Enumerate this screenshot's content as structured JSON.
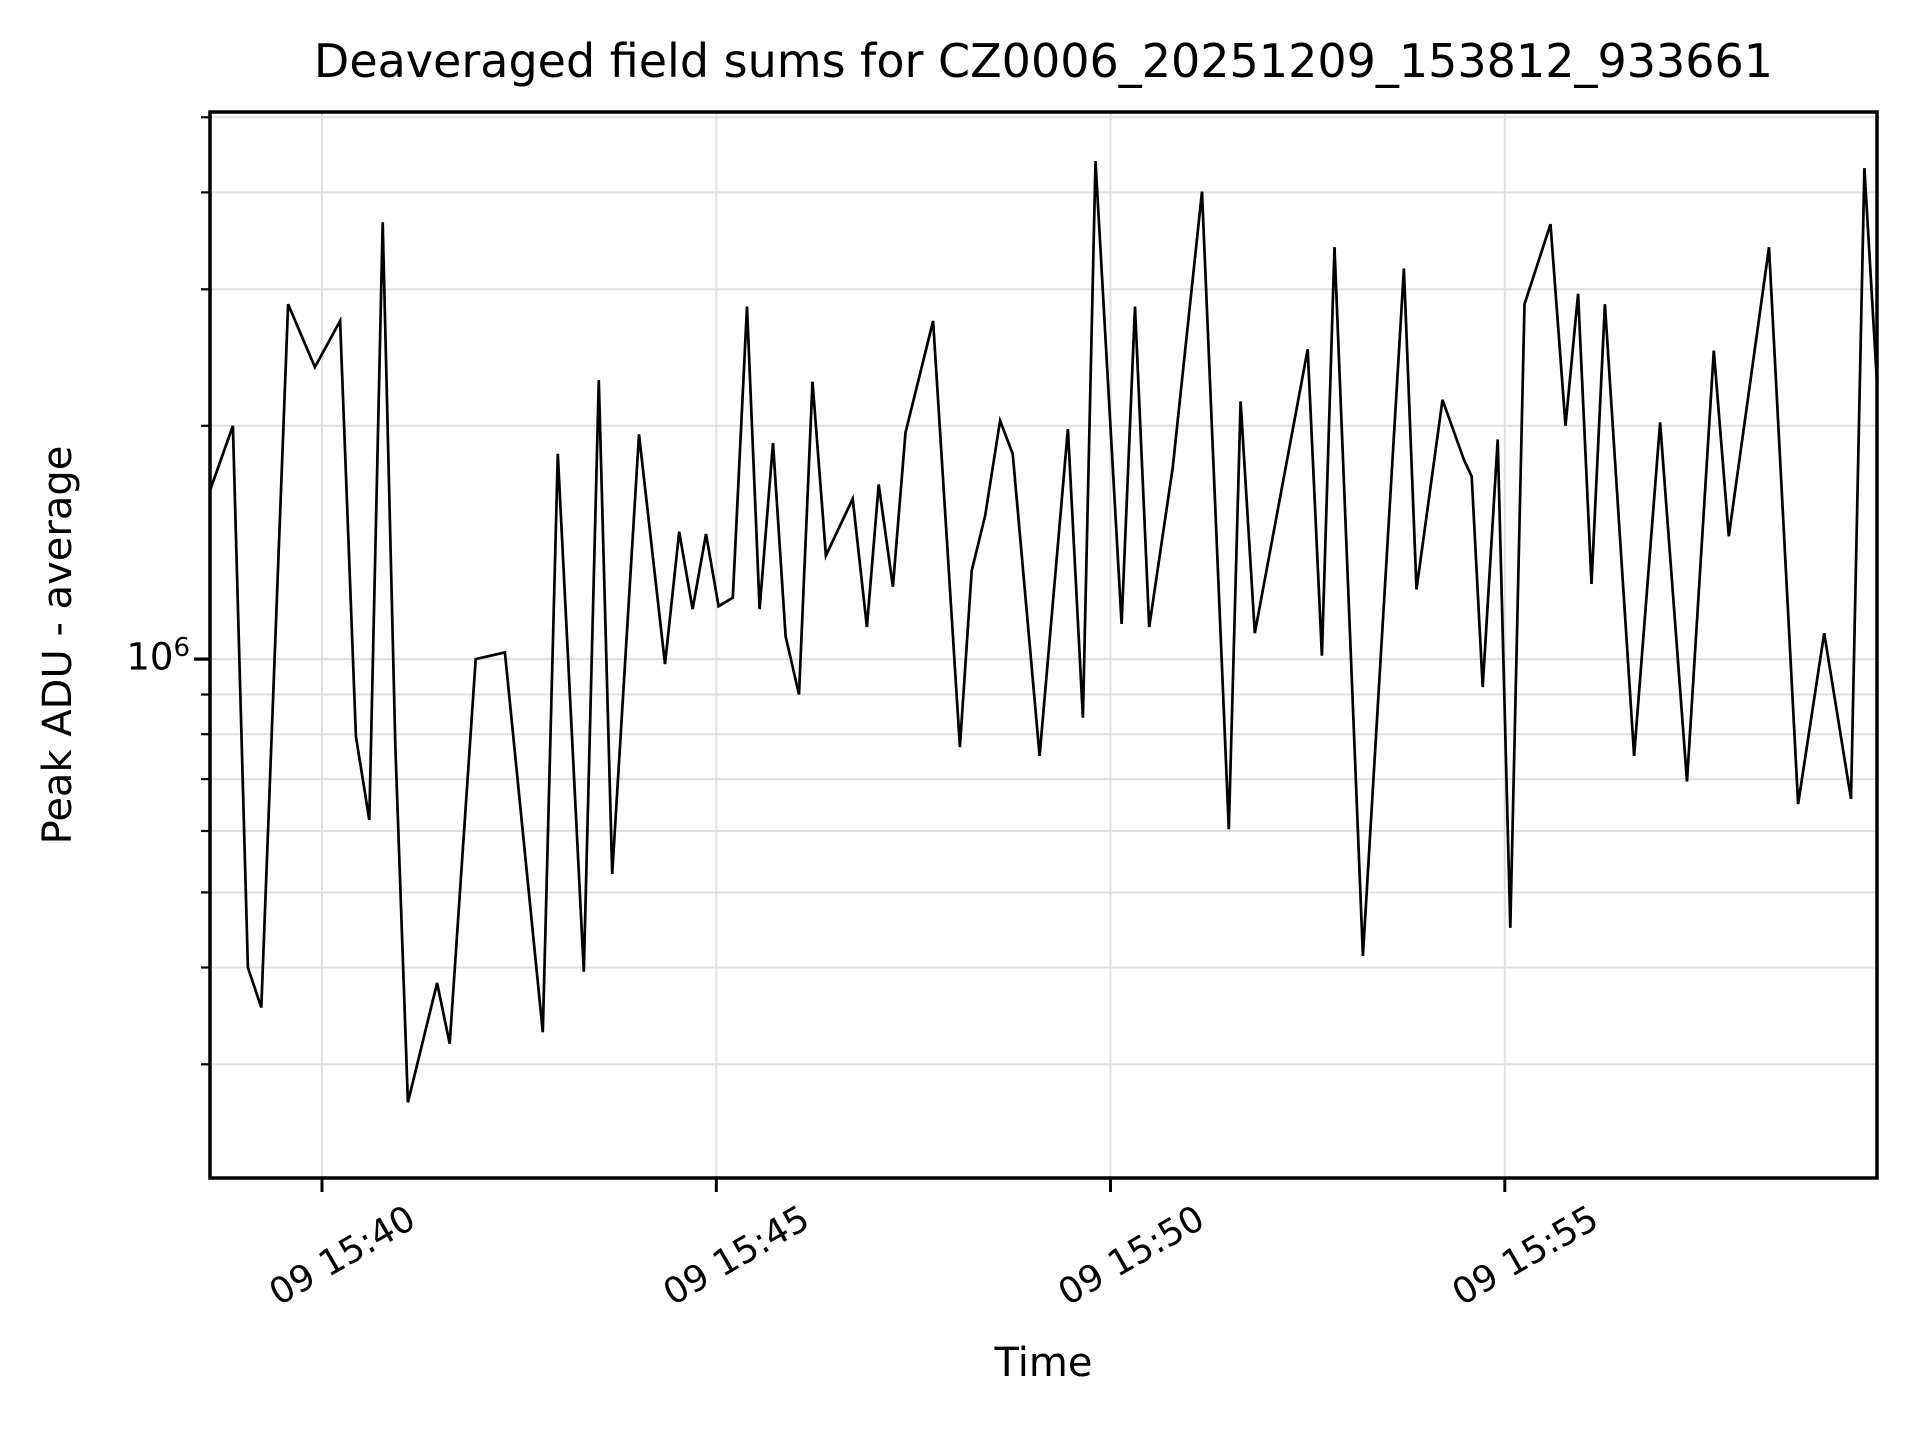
{
  "figure": {
    "title": "Deaveraged field sums for CZ0006_20251209_153812_933661",
    "xlabel": "Time",
    "ylabel": "Peak ADU - average",
    "y_major_tick": {
      "base": "10",
      "exponent": "6"
    }
  },
  "colors": {
    "background": "#ffffff",
    "line": "#000000",
    "grid": "#e0e0e0",
    "spine": "#000000",
    "text": "#000000"
  },
  "chart_data": {
    "type": "line",
    "title": "Deaveraged field sums for CZ0006_20251209_153812_933661",
    "xlabel": "Time",
    "ylabel": "Peak ADU - average",
    "grid": true,
    "legend": false,
    "x_axis": {
      "unit": "minutes relative to 09 15:40",
      "range": [
        -1.42,
        19.72
      ],
      "ticks": [
        {
          "t": 0,
          "label": "09 15:40"
        },
        {
          "t": 5,
          "label": "09 15:45"
        },
        {
          "t": 10,
          "label": "09 15:50"
        },
        {
          "t": 15,
          "label": "09 15:55"
        }
      ]
    },
    "y_axis": {
      "scale": "log",
      "range": [
        214000,
        5080000
      ],
      "major_gridlines": [
        1000000
      ],
      "minor_gridlines": [
        300000,
        400000,
        500000,
        600000,
        700000,
        800000,
        900000,
        2000000,
        3000000,
        4000000,
        5000000
      ],
      "major_tick_label": "10^6"
    },
    "series": [
      {
        "points": [
          [
            -1.42,
            1650000
          ],
          [
            -1.13,
            2000000
          ],
          [
            -0.94,
            400000
          ],
          [
            -0.77,
            355000
          ],
          [
            -0.43,
            2870000
          ],
          [
            -0.09,
            2380000
          ],
          [
            0.23,
            2730000
          ],
          [
            0.43,
            795000
          ],
          [
            0.6,
            620000
          ],
          [
            0.77,
            3660000
          ],
          [
            0.93,
            775000
          ],
          [
            1.09,
            268000
          ],
          [
            1.46,
            382000
          ],
          [
            1.62,
            319000
          ],
          [
            1.95,
            1000000
          ],
          [
            2.32,
            1020000
          ],
          [
            2.8,
            330000
          ],
          [
            2.99,
            1840000
          ],
          [
            3.32,
            395000
          ],
          [
            3.51,
            2290000
          ],
          [
            3.68,
            528000
          ],
          [
            4.02,
            1950000
          ],
          [
            4.35,
            985000
          ],
          [
            4.53,
            1460000
          ],
          [
            4.7,
            1160000
          ],
          [
            4.87,
            1450000
          ],
          [
            5.03,
            1170000
          ],
          [
            5.21,
            1200000
          ],
          [
            5.39,
            2850000
          ],
          [
            5.55,
            1160000
          ],
          [
            5.72,
            1900000
          ],
          [
            5.88,
            1070000
          ],
          [
            6.05,
            900000
          ],
          [
            6.22,
            2280000
          ],
          [
            6.39,
            1360000
          ],
          [
            6.73,
            1610000
          ],
          [
            6.91,
            1100000
          ],
          [
            7.06,
            1680000
          ],
          [
            7.24,
            1240000
          ],
          [
            7.4,
            1960000
          ],
          [
            7.75,
            2730000
          ],
          [
            8.09,
            770000
          ],
          [
            8.24,
            1300000
          ],
          [
            8.41,
            1530000
          ],
          [
            8.6,
            2030000
          ],
          [
            8.76,
            1840000
          ],
          [
            9.1,
            750000
          ],
          [
            9.46,
            1980000
          ],
          [
            9.65,
            840000
          ],
          [
            9.81,
            4390000
          ],
          [
            10.14,
            1110000
          ],
          [
            10.31,
            2850000
          ],
          [
            10.49,
            1100000
          ],
          [
            10.79,
            1770000
          ],
          [
            11.16,
            4010000
          ],
          [
            11.5,
            603000
          ],
          [
            11.65,
            2150000
          ],
          [
            11.83,
            1080000
          ],
          [
            12.5,
            2510000
          ],
          [
            12.68,
            1010000
          ],
          [
            12.84,
            3400000
          ],
          [
            13.2,
            414000
          ],
          [
            13.72,
            3190000
          ],
          [
            13.88,
            1230000
          ],
          [
            14.21,
            2160000
          ],
          [
            14.48,
            1810000
          ],
          [
            14.58,
            1720000
          ],
          [
            14.72,
            920000
          ],
          [
            14.91,
            1920000
          ],
          [
            15.07,
            450000
          ],
          [
            15.25,
            2870000
          ],
          [
            15.58,
            3640000
          ],
          [
            15.77,
            2000000
          ],
          [
            15.93,
            2960000
          ],
          [
            16.1,
            1250000
          ],
          [
            16.27,
            2870000
          ],
          [
            16.64,
            750000
          ],
          [
            16.97,
            2020000
          ],
          [
            17.31,
            695000
          ],
          [
            17.65,
            2500000
          ],
          [
            17.84,
            1440000
          ],
          [
            18.35,
            3400000
          ],
          [
            18.72,
            650000
          ],
          [
            19.05,
            1080000
          ],
          [
            19.39,
            660000
          ],
          [
            19.56,
            4300000
          ],
          [
            19.72,
            2270000
          ]
        ]
      }
    ]
  }
}
